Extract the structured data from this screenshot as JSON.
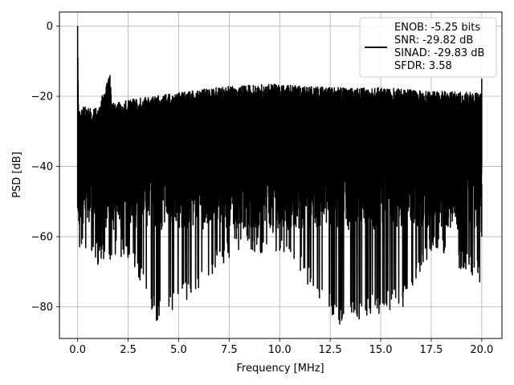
{
  "chart_data": {
    "type": "line",
    "title": "",
    "xlabel": "Frequency [MHz]",
    "ylabel": "PSD [dB]",
    "xlim": [
      -0.9,
      21.0
    ],
    "ylim": [
      -89.0,
      4.0
    ],
    "xticks": [
      0.0,
      2.5,
      5.0,
      7.5,
      10.0,
      12.5,
      15.0,
      17.5,
      20.0
    ],
    "xtick_labels": [
      "0.0",
      "2.5",
      "5.0",
      "7.5",
      "10.0",
      "12.5",
      "15.0",
      "17.5",
      "20.0"
    ],
    "yticks": [
      0,
      -20,
      -40,
      -60,
      -80
    ],
    "ytick_labels": [
      "0",
      "−20",
      "−40",
      "−60",
      "−80"
    ],
    "grid": true,
    "legend_position": "top-right",
    "series": [
      {
        "color": "#000000",
        "x_range": [
          0.0,
          20.0
        ],
        "upper_envelope": [
          [
            0.0,
            0
          ],
          [
            0.05,
            -24
          ],
          [
            0.3,
            -23
          ],
          [
            1.0,
            -23
          ],
          [
            1.6,
            -14
          ],
          [
            1.7,
            -22
          ],
          [
            2.5,
            -21
          ],
          [
            5.0,
            -19
          ],
          [
            7.5,
            -17
          ],
          [
            10.0,
            -16.5
          ],
          [
            12.5,
            -17.5
          ],
          [
            15.0,
            -17.5
          ],
          [
            17.5,
            -18.5
          ],
          [
            20.0,
            -19
          ],
          [
            20.0,
            -15
          ]
        ],
        "lower_envelope": [
          [
            0.0,
            -52
          ],
          [
            0.1,
            -63
          ],
          [
            1.0,
            -68
          ],
          [
            2.5,
            -66
          ],
          [
            3.9,
            -84
          ],
          [
            5.4,
            -78
          ],
          [
            7.5,
            -66
          ],
          [
            10.0,
            -64
          ],
          [
            12.97,
            -85
          ],
          [
            16.1,
            -80
          ],
          [
            17.5,
            -64
          ],
          [
            19.9,
            -73
          ],
          [
            20.0,
            -60
          ]
        ],
        "mid_band_range": [
          -38,
          -58
        ]
      }
    ],
    "legend": {
      "lines": [
        "ENOB: -5.25 bits",
        "SNR: -29.82 dB",
        "SINAD: -29.83 dB",
        "SFDR: 3.58"
      ]
    }
  }
}
